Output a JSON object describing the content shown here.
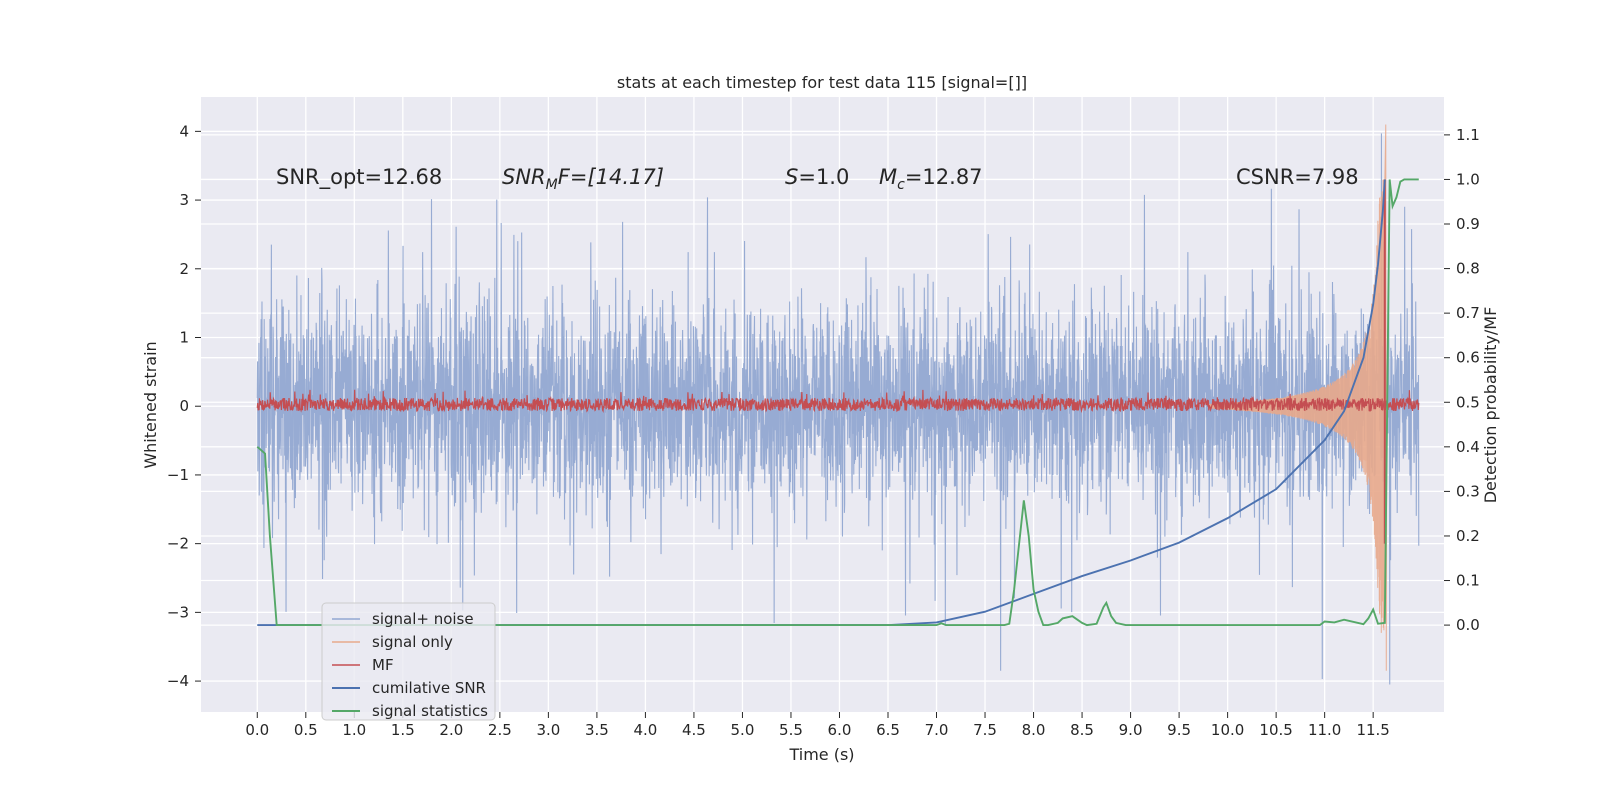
{
  "chart_data": {
    "type": "line",
    "title": "stats at each timestep for test data 115 [signal=[]]",
    "xlabel": "Time (s)",
    "ylabel": "Whitened strain",
    "ylabel_right": "Detection probability/MF",
    "xlim": [
      -0.58,
      12.23
    ],
    "ylim": [
      -4.45,
      4.5
    ],
    "ylim_right": [
      -0.195,
      1.185
    ],
    "grid": true,
    "legend_position": "lower-left",
    "xticks": [
      "0.0",
      "0.5",
      "1.0",
      "1.5",
      "2.0",
      "2.5",
      "3.0",
      "3.5",
      "4.0",
      "4.5",
      "5.0",
      "5.5",
      "6.0",
      "6.5",
      "7.0",
      "7.5",
      "8.0",
      "8.5",
      "9.0",
      "9.5",
      "10.0",
      "10.5",
      "11.0",
      "11.5"
    ],
    "xtick_values": [
      0,
      0.5,
      1,
      1.5,
      2,
      2.5,
      3,
      3.5,
      4,
      4.5,
      5,
      5.5,
      6,
      6.5,
      7,
      7.5,
      8,
      8.5,
      9,
      9.5,
      10,
      10.5,
      11,
      11.5
    ],
    "yticks_left": [
      "−4",
      "−3",
      "−2",
      "−1",
      "0",
      "1",
      "2",
      "3",
      "4"
    ],
    "ytick_values_left": [
      -4,
      -3,
      -2,
      -1,
      0,
      1,
      2,
      3,
      4
    ],
    "yticks_right": [
      "0.0",
      "0.1",
      "0.2",
      "0.3",
      "0.4",
      "0.5",
      "0.6",
      "0.7",
      "0.8",
      "0.9",
      "1.0",
      "1.1"
    ],
    "ytick_values_right": [
      0,
      0.1,
      0.2,
      0.3,
      0.4,
      0.5,
      0.6,
      0.7,
      0.8,
      0.9,
      1.0,
      1.1
    ],
    "annotations": [
      {
        "id": "snr-opt",
        "text": "SNR_opt=12.68"
      },
      {
        "id": "snr-mf",
        "text": "SNR_M F=[14.17]",
        "main": "SNR",
        "sub": "M",
        "rest": "F=[14.17]"
      },
      {
        "id": "s-value",
        "text": "S=1.0",
        "main": "S",
        "rest": "=1.0"
      },
      {
        "id": "mc-value",
        "text": "M_c=12.87",
        "main": "M",
        "sub": "c",
        "rest": "=12.87"
      },
      {
        "id": "csnr",
        "text": "CSNR=7.98"
      }
    ],
    "series": [
      {
        "name": "signal+ noise",
        "axis": "left",
        "color": "#92a8d1",
        "kind": "noise",
        "t_start": 0,
        "t_end": 11.97,
        "typical_envelope": [
          -1.95,
          1.95
        ],
        "extreme_range": [
          -4.05,
          3.97
        ]
      },
      {
        "name": "signal only",
        "axis": "left",
        "color": "#e8a98b",
        "kind": "chirp",
        "t_start": 9.8,
        "t_end": 11.62,
        "amplitude_start": 0.03,
        "amplitude_peak": 3.3,
        "peak_spike": [
          -3.85,
          4.1
        ]
      },
      {
        "name": "MF",
        "axis": "left",
        "color": "#c44e52",
        "kind": "band",
        "t_start": 0,
        "t_end": 11.97,
        "band": [
          -0.07,
          0.12
        ],
        "spike_time": 11.62,
        "spike_range": [
          -2.0,
          3.3
        ]
      },
      {
        "name": "cumilative SNR",
        "axis": "right",
        "color": "#4c72b0",
        "kind": "curve",
        "x": [
          0,
          6.5,
          7.0,
          7.5,
          8.0,
          8.5,
          9.0,
          9.5,
          10.0,
          10.5,
          11.0,
          11.2,
          11.4,
          11.5,
          11.55,
          11.6,
          11.62
        ],
        "y": [
          0,
          0,
          0.006,
          0.03,
          0.07,
          0.11,
          0.145,
          0.185,
          0.24,
          0.305,
          0.415,
          0.48,
          0.6,
          0.72,
          0.81,
          0.93,
          1.0
        ]
      },
      {
        "name": "signal statistics",
        "axis": "right",
        "color": "#55a868",
        "kind": "curve",
        "x": [
          0,
          0.08,
          0.13,
          0.2,
          7.0,
          7.05,
          7.1,
          7.7,
          7.75,
          7.8,
          7.9,
          7.95,
          8.0,
          8.05,
          8.1,
          8.15,
          8.25,
          8.3,
          8.4,
          8.5,
          8.55,
          8.65,
          8.72,
          8.75,
          8.8,
          8.85,
          8.95,
          10.95,
          11.0,
          11.1,
          11.2,
          11.4,
          11.45,
          11.5,
          11.55,
          11.62,
          11.67,
          11.7,
          11.74,
          11.78,
          11.82,
          11.88,
          11.97
        ],
        "y": [
          0.4,
          0.385,
          0.2,
          0,
          0,
          0.004,
          0,
          0,
          0.003,
          0.08,
          0.28,
          0.2,
          0.08,
          0.03,
          0,
          0,
          0.005,
          0.015,
          0.02,
          0.005,
          0,
          0.003,
          0.04,
          0.05,
          0.02,
          0.005,
          0,
          0,
          0.008,
          0.006,
          0.012,
          0.002,
          0.015,
          0.035,
          0.003,
          0.005,
          1.0,
          0.94,
          0.96,
          0.995,
          1.0,
          1.0,
          1.0
        ]
      }
    ]
  }
}
